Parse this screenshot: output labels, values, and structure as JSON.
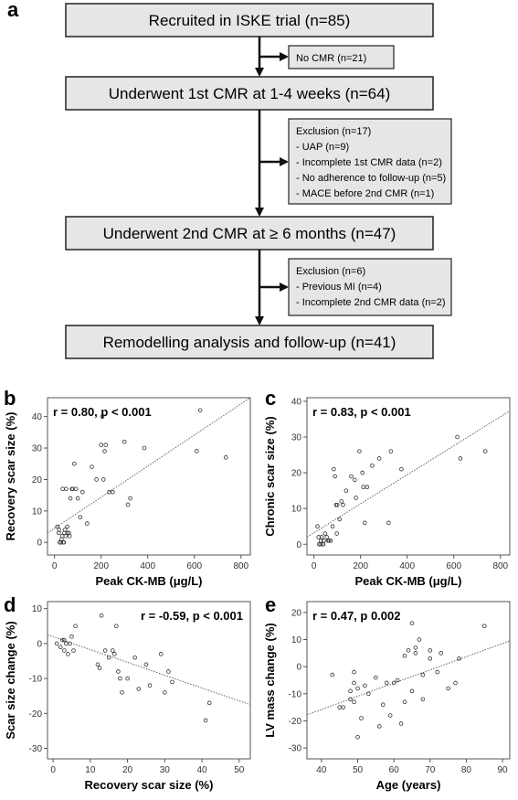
{
  "flowchart": {
    "panel_label": "a",
    "boxes": [
      {
        "text": "Recruited in ISKE trial (n=85)"
      },
      {
        "text": "Underwent 1st CMR at 1-4 weeks (n=64)"
      },
      {
        "text": "Underwent 2nd CMR at ≥ 6 months (n=47)"
      },
      {
        "text": "Remodelling analysis and follow-up (n=41)"
      }
    ],
    "side_boxes": [
      {
        "lines": [
          "No CMR (n=21)"
        ]
      },
      {
        "lines": [
          "Exclusion (n=17)",
          "- UAP (n=9)",
          "- Incomplete 1st CMR data (n=2)",
          "- No adherence to follow-up (n=5)",
          "- MACE before 2nd CMR (n=1)"
        ]
      },
      {
        "lines": [
          "Exclusion (n=6)",
          "- Previous MI (n=4)",
          "- Incomplete 2nd CMR data (n=2)"
        ]
      }
    ],
    "colors": {
      "box_fill": "#e6e6e6",
      "border": "#222222",
      "arrow": "#111111"
    }
  },
  "chart_data": [
    {
      "panel_label": "b",
      "type": "scatter",
      "annotation": "r = 0.80, p < 0.001",
      "xlabel": "Peak CK-MB (μg/L)",
      "ylabel": "Recovery scar size (%)",
      "xlim": [
        -30,
        840
      ],
      "ylim": [
        -4,
        46
      ],
      "xticks": [
        0,
        200,
        400,
        600,
        800
      ],
      "yticks": [
        0,
        10,
        20,
        30,
        40
      ],
      "fit": {
        "x": [
          -30,
          840
        ],
        "y": [
          3.0,
          46.0
        ]
      },
      "points": {
        "x": [
          12,
          18,
          22,
          28,
          30,
          33,
          38,
          40,
          42,
          48,
          55,
          62,
          65,
          20,
          35,
          45,
          50,
          55,
          68,
          75,
          78,
          85,
          92,
          100,
          110,
          120,
          140,
          160,
          180,
          200,
          205,
          210,
          215,
          220,
          235,
          250,
          300,
          315,
          325,
          385,
          610,
          625,
          735
        ],
        "y": [
          5,
          3,
          0,
          0,
          1,
          2,
          0,
          0,
          3,
          2,
          3,
          3,
          2,
          4,
          17,
          4,
          17,
          5,
          14,
          17,
          17,
          25,
          17,
          14,
          8,
          16,
          6,
          24,
          20,
          31,
          40,
          20,
          29,
          31,
          16,
          16,
          32,
          12,
          14,
          30,
          29,
          42,
          27
        ]
      }
    },
    {
      "panel_label": "c",
      "type": "scatter",
      "annotation": "r = 0.83, p < 0.001",
      "xlabel": "Peak CK-MB (μg/L)",
      "ylabel": "Chronic scar size (%)",
      "xlim": [
        -30,
        840
      ],
      "ylim": [
        -3,
        41
      ],
      "xticks": [
        0,
        200,
        400,
        600,
        800
      ],
      "yticks": [
        0,
        10,
        20,
        30,
        40
      ],
      "fit": {
        "x": [
          -30,
          840
        ],
        "y": [
          2.0,
          37.3
        ]
      },
      "points": {
        "x": [
          15,
          20,
          22,
          28,
          30,
          33,
          38,
          40,
          42,
          48,
          55,
          60,
          65,
          72,
          80,
          85,
          90,
          95,
          98,
          100,
          110,
          118,
          125,
          138,
          160,
          175,
          180,
          195,
          208,
          212,
          218,
          228,
          250,
          280,
          320,
          330,
          375,
          615,
          628,
          735
        ],
        "y": [
          5,
          2,
          0,
          0,
          1,
          2,
          0,
          0,
          1,
          3,
          2,
          1,
          1,
          1,
          5,
          21,
          19,
          11,
          3,
          11,
          7,
          12,
          11,
          15,
          19,
          18,
          13,
          26,
          20,
          16,
          6,
          16,
          22,
          24,
          6,
          26,
          21,
          30,
          24,
          26
        ]
      }
    },
    {
      "panel_label": "d",
      "type": "scatter",
      "annotation": "r = -0.59, p < 0.001",
      "xlabel": "Recovery scar size (%)",
      "ylabel": "Scar size change (%)",
      "xlim": [
        -1.5,
        53
      ],
      "ylim": [
        -33,
        12
      ],
      "xticks": [
        0,
        10,
        20,
        30,
        40,
        50
      ],
      "yticks": [
        -30,
        -20,
        -10,
        0,
        10
      ],
      "fit": {
        "x": [
          -1.5,
          53
        ],
        "y": [
          2.5,
          -17.5
        ]
      },
      "points": {
        "x": [
          1,
          2,
          2.5,
          3,
          3,
          3.5,
          4,
          4.5,
          5,
          5.5,
          6,
          12,
          12.5,
          13,
          14,
          15,
          16,
          16.5,
          17,
          17.5,
          18,
          18.5,
          20,
          22,
          23,
          25,
          26,
          29,
          30,
          31,
          32,
          41,
          42
        ],
        "y": [
          0,
          -1,
          1,
          -2,
          1,
          0,
          -3,
          0,
          2,
          -2,
          5,
          -6,
          -7,
          8,
          -2,
          -4,
          -2,
          -3,
          5,
          -8,
          -10,
          -14,
          -10,
          -4,
          -13,
          -6,
          -12,
          -3,
          -14,
          -8,
          -11,
          -22,
          -17
        ]
      }
    },
    {
      "panel_label": "e",
      "type": "scatter",
      "annotation": "r = 0.47, p 0.002",
      "xlabel": "Age (years)",
      "ylabel": "LV mass change (%)",
      "xlim": [
        36,
        92
      ],
      "ylim": [
        -34,
        24
      ],
      "xticks": [
        40,
        50,
        60,
        70,
        80,
        90
      ],
      "yticks": [
        -30,
        -20,
        -10,
        0,
        10,
        20
      ],
      "fit": {
        "x": [
          36,
          92
        ],
        "y": [
          -17.7,
          9.5
        ]
      },
      "points": {
        "x": [
          43,
          45,
          46,
          48,
          48,
          49,
          49,
          49,
          50,
          50,
          51,
          52,
          53,
          55,
          56,
          57,
          58,
          59,
          60,
          61,
          62,
          63,
          63,
          64,
          65,
          65,
          66,
          66,
          67,
          68,
          68,
          70,
          70,
          72,
          73,
          75,
          77,
          78,
          85
        ],
        "y": [
          -3,
          -15,
          -15,
          -12,
          -9,
          -13,
          -6,
          -2,
          -26,
          -8,
          -19,
          -7,
          -10,
          -4,
          -22,
          -14,
          -6,
          -18,
          -6,
          -5,
          -21,
          -13,
          4,
          6,
          16,
          -9,
          7,
          5,
          10,
          -3,
          -12,
          3,
          6,
          -2,
          5,
          -8,
          -6,
          3,
          15
        ]
      }
    }
  ]
}
